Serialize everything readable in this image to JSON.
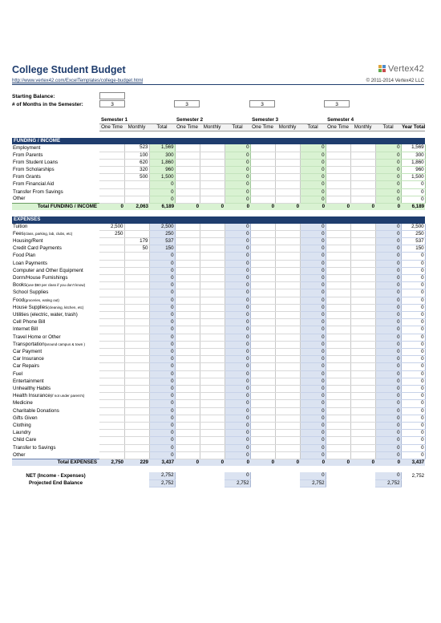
{
  "header": {
    "title": "College Student Budget",
    "url": "http://www.vertex42.com/ExcelTemplates/college-budget.html",
    "copyright": "© 2011-2014 Vertex42 LLC",
    "logo": "Vertex42"
  },
  "settings": {
    "starting_balance_label": "Starting Balance:",
    "starting_balance_value": "",
    "months_label": "# of Months in the Semester:",
    "months": [
      "3",
      "3",
      "3",
      "3"
    ]
  },
  "columns": {
    "semesters": [
      "Semester 1",
      "Semester 2",
      "Semester 3",
      "Semester 4"
    ],
    "one_time": "One Time",
    "monthly": "Monthly",
    "total": "Total",
    "year_total": "Year Total"
  },
  "income": {
    "section_label": "FUNDING / INCOME",
    "rows": [
      {
        "label": "Employment",
        "cells": [
          "",
          "523",
          "1,569",
          "",
          "",
          "0",
          "",
          "",
          "0",
          "",
          "",
          "0",
          "1,569"
        ]
      },
      {
        "label": "From Parents",
        "cells": [
          "",
          "100",
          "300",
          "",
          "",
          "0",
          "",
          "",
          "0",
          "",
          "",
          "0",
          "300"
        ]
      },
      {
        "label": "From Student Loans",
        "cells": [
          "",
          "620",
          "1,860",
          "",
          "",
          "0",
          "",
          "",
          "0",
          "",
          "",
          "0",
          "1,860"
        ]
      },
      {
        "label": "From Scholarships",
        "cells": [
          "",
          "320",
          "960",
          "",
          "",
          "0",
          "",
          "",
          "0",
          "",
          "",
          "0",
          "960"
        ]
      },
      {
        "label": "From Grants",
        "cells": [
          "",
          "500",
          "1,500",
          "",
          "",
          "0",
          "",
          "",
          "0",
          "",
          "",
          "0",
          "1,500"
        ]
      },
      {
        "label": "From Financial Aid",
        "cells": [
          "",
          "",
          "0",
          "",
          "",
          "0",
          "",
          "",
          "0",
          "",
          "",
          "0",
          "0"
        ]
      },
      {
        "label": "Transfer From Savings",
        "cells": [
          "",
          "",
          "0",
          "",
          "",
          "0",
          "",
          "",
          "0",
          "",
          "",
          "0",
          "0"
        ]
      },
      {
        "label": "Other",
        "cells": [
          "",
          "",
          "0",
          "",
          "",
          "0",
          "",
          "",
          "0",
          "",
          "",
          "0",
          "0"
        ]
      }
    ],
    "total_label": "Total FUNDING / INCOME",
    "total_cells": [
      "0",
      "2,063",
      "6,189",
      "0",
      "0",
      "0",
      "0",
      "0",
      "0",
      "0",
      "0",
      "0",
      "6,189"
    ]
  },
  "expenses": {
    "section_label": "EXPENSES",
    "rows": [
      {
        "label": "Tuition",
        "note": "",
        "cells": [
          "2,500",
          "",
          "2,500",
          "",
          "",
          "0",
          "",
          "",
          "0",
          "",
          "",
          "0",
          "2,500"
        ]
      },
      {
        "label": "Fees",
        "note": "(class, parking, lab, clubs, etc)",
        "cells": [
          "250",
          "",
          "250",
          "",
          "",
          "0",
          "",
          "",
          "0",
          "",
          "",
          "0",
          "250"
        ]
      },
      {
        "label": "Housing/Rent",
        "note": "",
        "cells": [
          "",
          "179",
          "537",
          "",
          "",
          "0",
          "",
          "",
          "0",
          "",
          "",
          "0",
          "537"
        ]
      },
      {
        "label": "Credit Card Payments",
        "note": "",
        "cells": [
          "",
          "50",
          "150",
          "",
          "",
          "0",
          "",
          "",
          "0",
          "",
          "",
          "0",
          "150"
        ]
      },
      {
        "label": "Food Plan",
        "note": "",
        "cells": [
          "",
          "",
          "0",
          "",
          "",
          "0",
          "",
          "",
          "0",
          "",
          "",
          "0",
          "0"
        ]
      },
      {
        "label": "Loan Payments",
        "note": "",
        "cells": [
          "",
          "",
          "0",
          "",
          "",
          "0",
          "",
          "",
          "0",
          "",
          "",
          "0",
          "0"
        ]
      },
      {
        "label": "Computer and Other Equipment",
        "note": "",
        "cells": [
          "",
          "",
          "0",
          "",
          "",
          "0",
          "",
          "",
          "0",
          "",
          "",
          "0",
          "0"
        ]
      },
      {
        "label": "Dorm/House Furnishings",
        "note": "",
        "cells": [
          "",
          "",
          "0",
          "",
          "",
          "0",
          "",
          "",
          "0",
          "",
          "",
          "0",
          "0"
        ]
      },
      {
        "label": "Books",
        "note": "(use $60 per class if you don't know)",
        "cells": [
          "",
          "",
          "0",
          "",
          "",
          "0",
          "",
          "",
          "0",
          "",
          "",
          "0",
          "0"
        ]
      },
      {
        "label": "School Supplies",
        "note": "",
        "cells": [
          "",
          "",
          "0",
          "",
          "",
          "0",
          "",
          "",
          "0",
          "",
          "",
          "0",
          "0"
        ]
      },
      {
        "label": "Food",
        "note": "(groceries, eating out)",
        "cells": [
          "",
          "",
          "0",
          "",
          "",
          "0",
          "",
          "",
          "0",
          "",
          "",
          "0",
          "0"
        ]
      },
      {
        "label": "House Supplies",
        "note": "(cleaning, kitchen, etc)",
        "cells": [
          "",
          "",
          "0",
          "",
          "",
          "0",
          "",
          "",
          "0",
          "",
          "",
          "0",
          "0"
        ]
      },
      {
        "label": "Utilities (electric, water, trash)",
        "note": "",
        "cells": [
          "",
          "",
          "0",
          "",
          "",
          "0",
          "",
          "",
          "0",
          "",
          "",
          "0",
          "0"
        ]
      },
      {
        "label": "Cell Phone Bill",
        "note": "",
        "cells": [
          "",
          "",
          "0",
          "",
          "",
          "0",
          "",
          "",
          "0",
          "",
          "",
          "0",
          "0"
        ]
      },
      {
        "label": "Internet Bill",
        "note": "",
        "cells": [
          "",
          "",
          "0",
          "",
          "",
          "0",
          "",
          "",
          "0",
          "",
          "",
          "0",
          "0"
        ]
      },
      {
        "label": "Travel Home or Other",
        "note": "",
        "cells": [
          "",
          "",
          "0",
          "",
          "",
          "0",
          "",
          "",
          "0",
          "",
          "",
          "0",
          "0"
        ]
      },
      {
        "label": "Transportation",
        "note": "(around campus & town )",
        "cells": [
          "",
          "",
          "0",
          "",
          "",
          "0",
          "",
          "",
          "0",
          "",
          "",
          "0",
          "0"
        ]
      },
      {
        "label": "Car Payment",
        "note": "",
        "cells": [
          "",
          "",
          "0",
          "",
          "",
          "0",
          "",
          "",
          "0",
          "",
          "",
          "0",
          "0"
        ]
      },
      {
        "label": "Car Insurance",
        "note": "",
        "cells": [
          "",
          "",
          "0",
          "",
          "",
          "0",
          "",
          "",
          "0",
          "",
          "",
          "0",
          "0"
        ]
      },
      {
        "label": "Car Repairs",
        "note": "",
        "cells": [
          "",
          "",
          "0",
          "",
          "",
          "0",
          "",
          "",
          "0",
          "",
          "",
          "0",
          "0"
        ]
      },
      {
        "label": "Fuel",
        "note": "",
        "cells": [
          "",
          "",
          "0",
          "",
          "",
          "0",
          "",
          "",
          "0",
          "",
          "",
          "0",
          "0"
        ]
      },
      {
        "label": "Entertainment",
        "note": "",
        "cells": [
          "",
          "",
          "0",
          "",
          "",
          "0",
          "",
          "",
          "0",
          "",
          "",
          "0",
          "0"
        ]
      },
      {
        "label": "Unhealthy Habits",
        "note": "",
        "cells": [
          "",
          "",
          "0",
          "",
          "",
          "0",
          "",
          "",
          "0",
          "",
          "",
          "0",
          "0"
        ]
      },
      {
        "label": "Health Insurance",
        "note": "(if not under parent's)",
        "cells": [
          "",
          "",
          "0",
          "",
          "",
          "0",
          "",
          "",
          "0",
          "",
          "",
          "0",
          "0"
        ]
      },
      {
        "label": "Medicine",
        "note": "",
        "cells": [
          "",
          "",
          "0",
          "",
          "",
          "0",
          "",
          "",
          "0",
          "",
          "",
          "0",
          "0"
        ]
      },
      {
        "label": "Charitable Donations",
        "note": "",
        "cells": [
          "",
          "",
          "0",
          "",
          "",
          "0",
          "",
          "",
          "0",
          "",
          "",
          "0",
          "0"
        ]
      },
      {
        "label": "Gifts Given",
        "note": "",
        "cells": [
          "",
          "",
          "0",
          "",
          "",
          "0",
          "",
          "",
          "0",
          "",
          "",
          "0",
          "0"
        ]
      },
      {
        "label": "Clothing",
        "note": "",
        "cells": [
          "",
          "",
          "0",
          "",
          "",
          "0",
          "",
          "",
          "0",
          "",
          "",
          "0",
          "0"
        ]
      },
      {
        "label": "Laundry",
        "note": "",
        "cells": [
          "",
          "",
          "0",
          "",
          "",
          "0",
          "",
          "",
          "0",
          "",
          "",
          "0",
          "0"
        ]
      },
      {
        "label": "Child Care",
        "note": "",
        "cells": [
          "",
          "",
          "0",
          "",
          "",
          "0",
          "",
          "",
          "0",
          "",
          "",
          "0",
          "0"
        ]
      },
      {
        "label": "Transfer to Savings",
        "note": "",
        "cells": [
          "",
          "",
          "0",
          "",
          "",
          "0",
          "",
          "",
          "0",
          "",
          "",
          "0",
          "0"
        ]
      },
      {
        "label": "Other",
        "note": "",
        "cells": [
          "",
          "",
          "0",
          "",
          "",
          "0",
          "",
          "",
          "0",
          "",
          "",
          "0",
          "0"
        ]
      }
    ],
    "total_label": "Total EXPENSES",
    "total_cells": [
      "2,750",
      "229",
      "3,437",
      "0",
      "0",
      "0",
      "0",
      "0",
      "0",
      "0",
      "0",
      "0",
      "3,437"
    ]
  },
  "net": {
    "label": "NET (Income - Expenses)",
    "cells": [
      "",
      "",
      "2,752",
      "",
      "",
      "0",
      "",
      "",
      "0",
      "",
      "",
      "0",
      "2,752"
    ]
  },
  "projected": {
    "label": "Projected End Balance",
    "cells": [
      "",
      "",
      "2,752",
      "",
      "",
      "2,752",
      "",
      "",
      "2,752",
      "",
      "",
      "2,752",
      ""
    ]
  },
  "colors": {
    "navy": "#1f3d6e",
    "income_total_fill": "#d9f2d2",
    "expense_total_fill": "#dbe3f1"
  }
}
